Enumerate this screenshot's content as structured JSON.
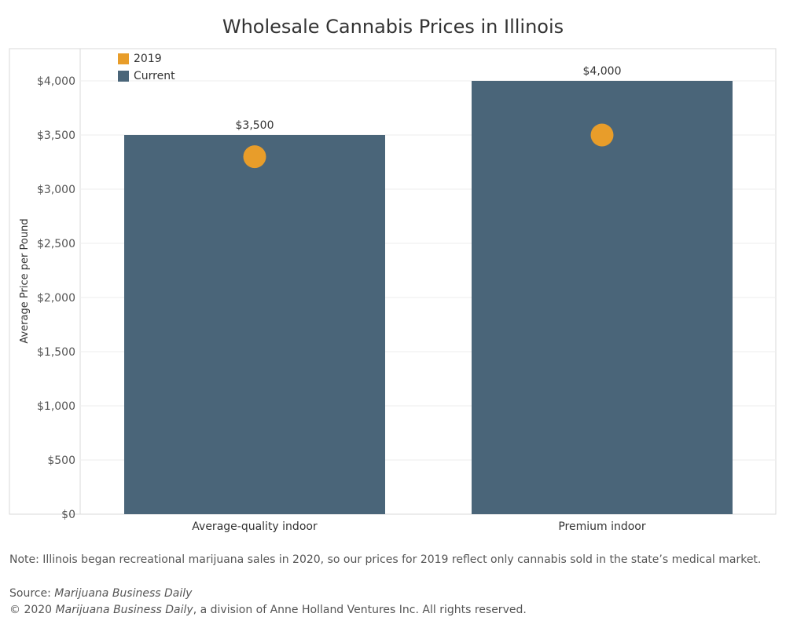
{
  "title": "Wholesale Cannabis Prices in Illinois",
  "legend": [
    {
      "label": "2019",
      "color": "#E89D2A"
    },
    {
      "label": "Current",
      "color": "#4A6579"
    }
  ],
  "chart_data": {
    "type": "bar",
    "title": "Wholesale Cannabis Prices in Illinois",
    "ylabel": "Average Price per Pound",
    "xlabel": "",
    "categories": [
      "Average-quality indoor",
      "Premium indoor"
    ],
    "ylim": [
      0,
      4300
    ],
    "yticks": [
      0,
      500,
      1000,
      1500,
      2000,
      2500,
      3000,
      3500,
      4000
    ],
    "ytick_labels": [
      "$0",
      "$500",
      "$1,000",
      "$1,500",
      "$2,000",
      "$2,500",
      "$3,000",
      "$3,500",
      "$4,000"
    ],
    "grid": true,
    "legend_position": "top-left",
    "series": [
      {
        "name": "Current",
        "type": "bar",
        "color": "#4A6579",
        "values": [
          3500,
          4000
        ],
        "data_labels": [
          "$3,500",
          "$4,000"
        ]
      },
      {
        "name": "2019",
        "type": "point",
        "color": "#E89D2A",
        "values": [
          3300,
          3500
        ]
      }
    ]
  },
  "note": "Note: Illinois began recreational marijuana sales in 2020, so our prices for 2019 reflect only cannabis sold in the state’s medical market.",
  "source": {
    "prefix": "Source: ",
    "publication": "Marijuana Business Daily",
    "copyright_prefix": "© 2020 ",
    "copyright_rest": ", a division of Anne Holland Ventures Inc. All rights reserved."
  }
}
